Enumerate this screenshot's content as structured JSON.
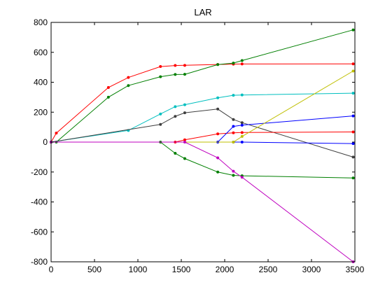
{
  "chart_data": {
    "type": "line",
    "title": "LAR",
    "xlabel": "",
    "ylabel": "",
    "xlim": [
      0,
      3500
    ],
    "ylim": [
      -800,
      800
    ],
    "xticks": [
      0,
      500,
      1000,
      1500,
      2000,
      2500,
      3000,
      3500
    ],
    "yticks": [
      -800,
      -600,
      -400,
      -200,
      0,
      200,
      400,
      600,
      800
    ],
    "grid": false,
    "series": [
      {
        "color": "#ff0000",
        "x": [
          0,
          60,
          660,
          890,
          1260,
          1430,
          1540,
          1920,
          2100,
          2200,
          3480
        ],
        "y": [
          0,
          60,
          365,
          432,
          505,
          512,
          513,
          519,
          521,
          522,
          523
        ]
      },
      {
        "color": "#007f00",
        "x": [
          0,
          60,
          660,
          890,
          1260,
          1430,
          1540,
          1920,
          2100,
          2200,
          3480
        ],
        "y": [
          0,
          0,
          300,
          378,
          437,
          452,
          453,
          518,
          528,
          545,
          750
        ]
      },
      {
        "color": "#00bfbf",
        "x": [
          0,
          890,
          1260,
          1430,
          1540,
          1920,
          2100,
          2200,
          3480
        ],
        "y": [
          0,
          78,
          188,
          237,
          250,
          296,
          313,
          315,
          327
        ]
      },
      {
        "color": "#3f3f3f",
        "x": [
          0,
          1260,
          1430,
          1540,
          1920,
          2100,
          2200,
          3480
        ],
        "y": [
          0,
          118,
          172,
          196,
          221,
          151,
          130,
          -100
        ]
      },
      {
        "color": "#ff0000",
        "x": [
          0,
          1430,
          1540,
          1920,
          2100,
          2200,
          3480
        ],
        "y": [
          0,
          0,
          15,
          55,
          62,
          64,
          68
        ]
      },
      {
        "color": "#0000ff",
        "x": [
          0,
          1920,
          2100,
          2200,
          3480
        ],
        "y": [
          0,
          0,
          105,
          113,
          175
        ]
      },
      {
        "color": "#0000ff",
        "x": [
          0,
          2100,
          2200,
          3480
        ],
        "y": [
          0,
          0,
          0,
          -10
        ]
      },
      {
        "color": "#bfbf00",
        "x": [
          0,
          2100,
          2200,
          3480
        ],
        "y": [
          0,
          0,
          38,
          475
        ]
      },
      {
        "color": "#007f00",
        "x": [
          0,
          1260,
          1430,
          1540,
          1920,
          2100,
          2200,
          3480
        ],
        "y": [
          0,
          0,
          -75,
          -110,
          -200,
          -222,
          -225,
          -240
        ]
      },
      {
        "color": "#bf00bf",
        "x": [
          0,
          1540,
          1920,
          2100,
          2200,
          3480
        ],
        "y": [
          0,
          0,
          -105,
          -195,
          -235,
          -800
        ]
      }
    ]
  }
}
